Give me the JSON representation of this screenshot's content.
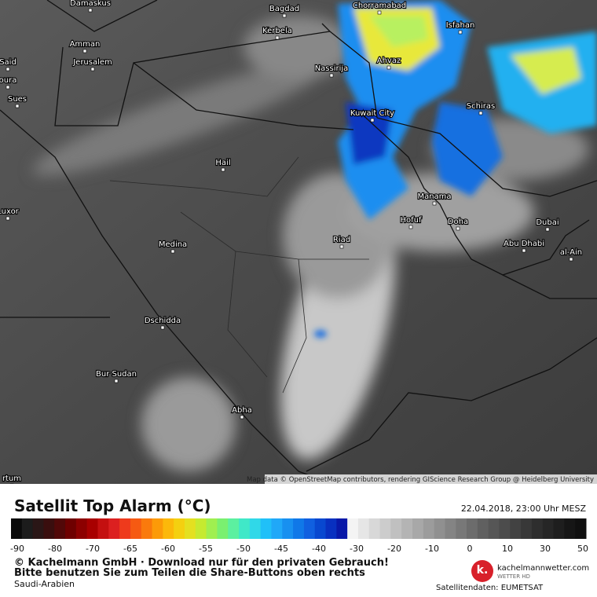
{
  "map": {
    "cities": [
      "Damaskus",
      "Bagdad",
      "Chorramabad",
      "Kerbela",
      "Isfahan",
      "Amman",
      "Jerusalem",
      "Said",
      "Nassirija",
      "Ahvaz",
      "oura",
      "Sues",
      "Schiras",
      "Kuwait City",
      "Hail",
      "Manama",
      "Luxor",
      "Hofuf",
      "Doha",
      "Dubai",
      "Riad",
      "Medina",
      "Abu Dhabi",
      "al-Ain",
      "Dschidda",
      "Bur Sudan",
      "Abha",
      "rtum"
    ],
    "attribution": "Map data © OpenStreetMap contributors, rendering GIScience Research Group @ Heidelberg University"
  },
  "legend": {
    "title": "Satellit Top Alarm (°C)",
    "timestamp": "22.04.2018, 23:00 Uhr MESZ",
    "ticks": [
      -90,
      -80,
      -70,
      -65,
      -60,
      -55,
      -50,
      -45,
      -40,
      -30,
      -20,
      -10,
      0,
      10,
      30,
      50
    ],
    "colors": [
      "#0a0a0a",
      "#1c1c1c",
      "#2a1616",
      "#3a0e0e",
      "#520808",
      "#6e0000",
      "#8c0000",
      "#a80000",
      "#c41010",
      "#dc2020",
      "#ee3a1c",
      "#f65a12",
      "#fa7a0c",
      "#fc9a08",
      "#fcb80a",
      "#f4d010",
      "#e4e020",
      "#c6ea30",
      "#a0ef50",
      "#7af070",
      "#5cf0a0",
      "#40e8c8",
      "#30d8e8",
      "#20c0f8",
      "#20a8f8",
      "#1890f0",
      "#1078e8",
      "#1060e0",
      "#0848d0",
      "#0830c0",
      "#0818a8",
      "#f4f4f4",
      "#e6e6e6",
      "#d8d8d8",
      "#cccccc",
      "#c0c0c0",
      "#b4b4b4",
      "#a8a8a8",
      "#9c9c9c",
      "#909090",
      "#848484",
      "#787878",
      "#6c6c6c",
      "#606060",
      "#565656",
      "#4c4c4c",
      "#424242",
      "#383838",
      "#2e2e2e",
      "#262626",
      "#1e1e1e",
      "#161616",
      "#101010"
    ]
  },
  "footer": {
    "copyright": "© Kachelmann GmbH · Download nur für den privaten Gebrauch!",
    "share": "Bitte benutzen Sie zum Teilen die Share-Buttons oben rechts",
    "region": "Saudi-Arabien",
    "logo_mark": "k.",
    "logo_site": "kachelmannwetter.com",
    "logo_sub": "WETTER HD",
    "source": "Satellitendaten: EUMETSAT"
  }
}
